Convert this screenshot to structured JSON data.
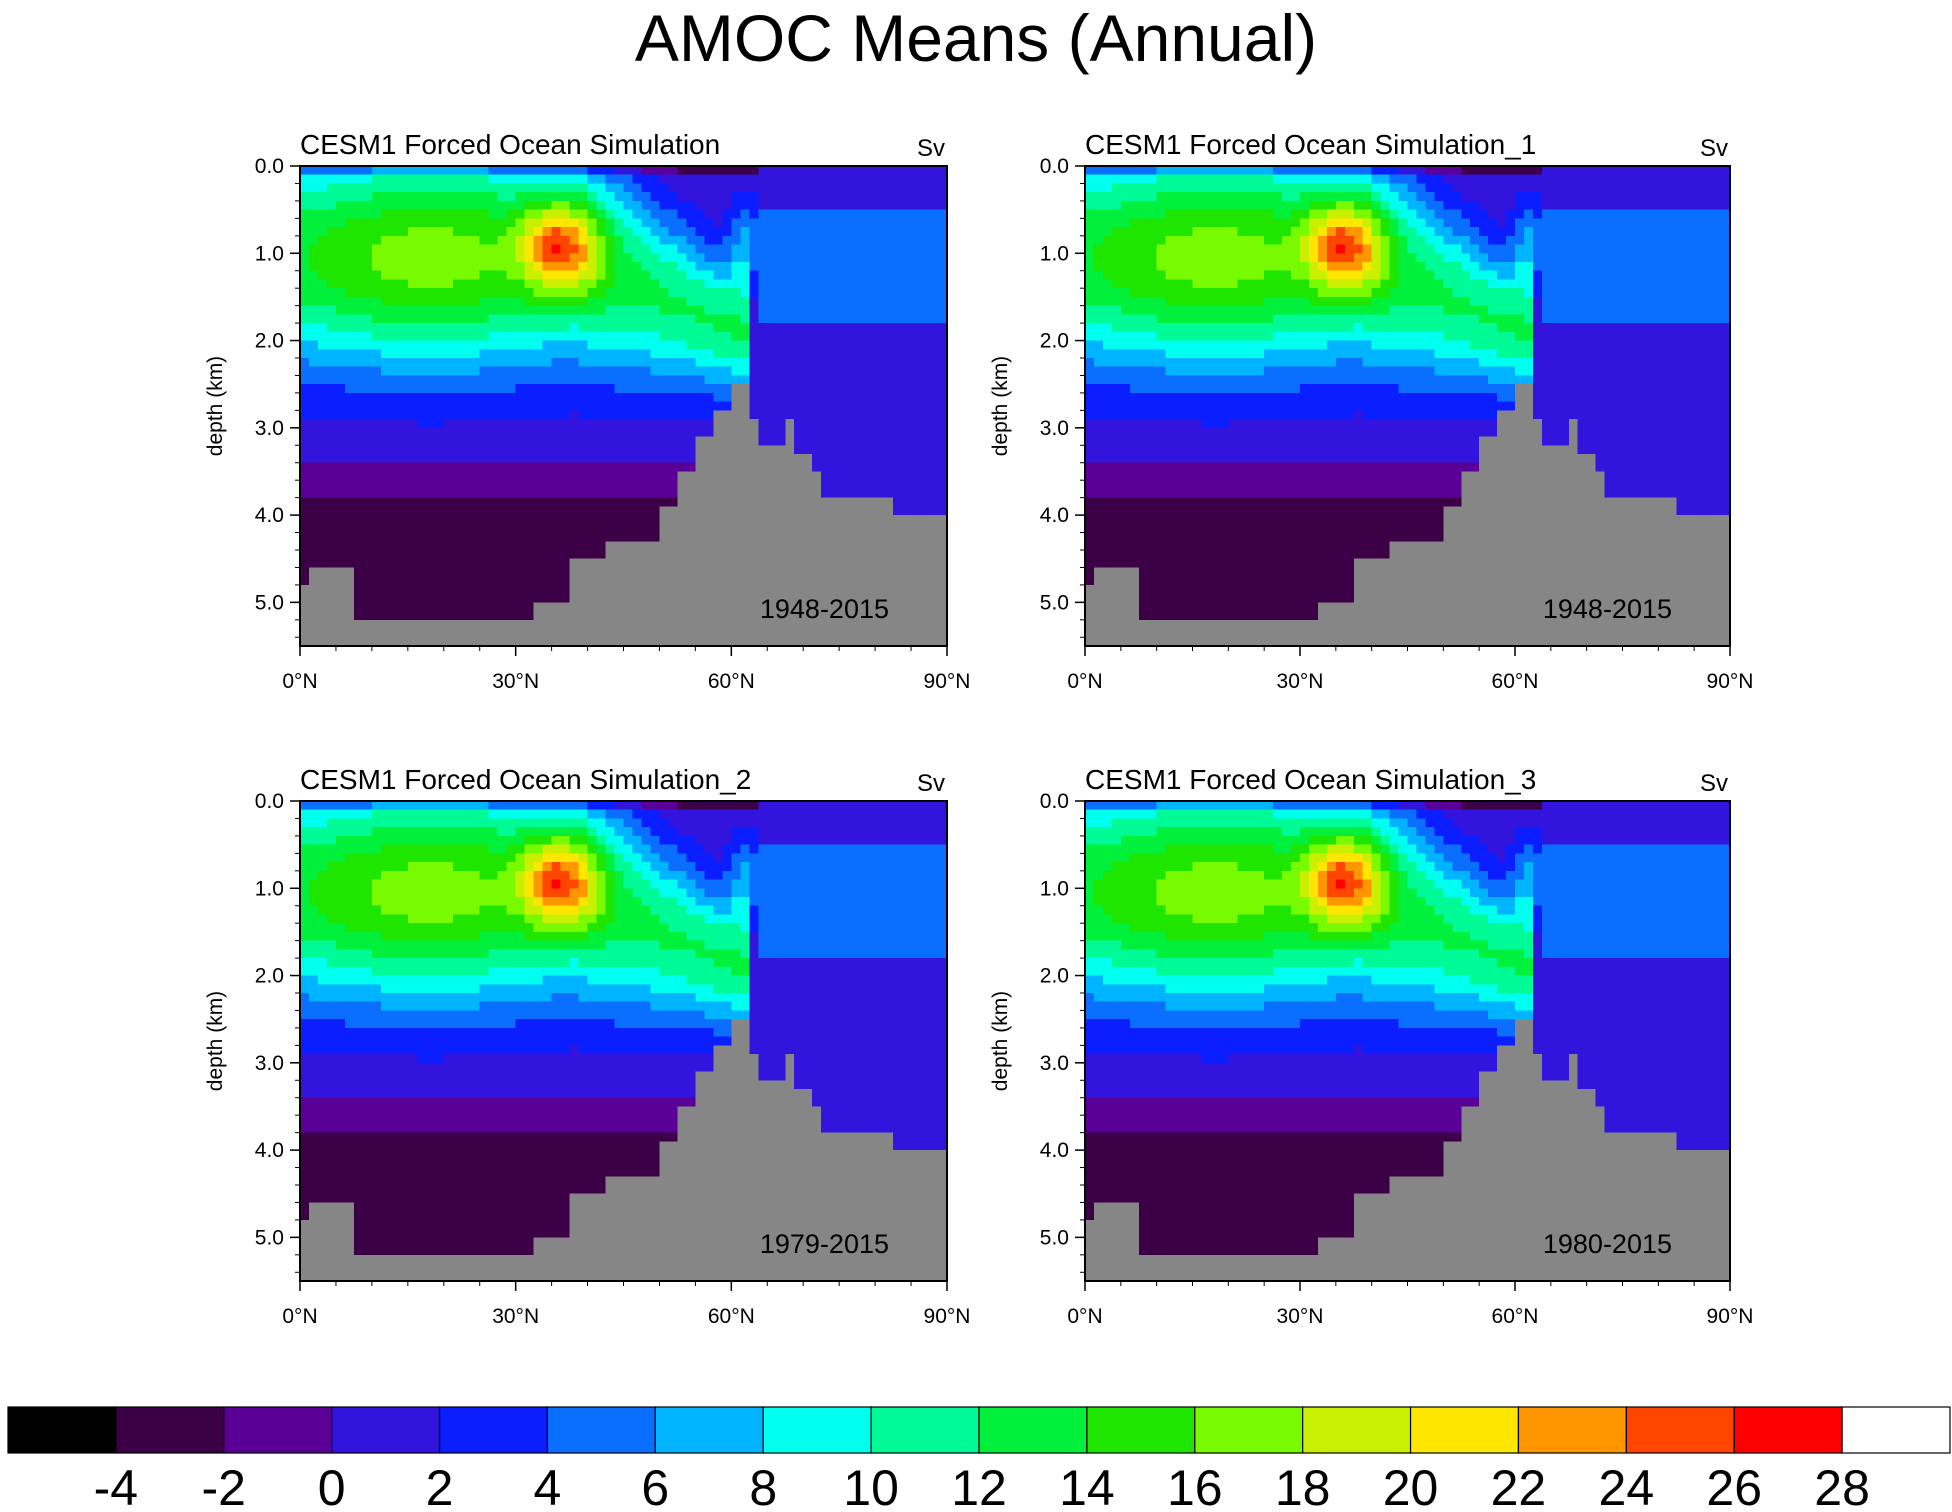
{
  "title": "AMOC Means (Annual)",
  "chart_data": {
    "type": "contour-filled",
    "variable": "AMOC (Atlantic meridional overturning streamfunction)",
    "units": "Sv",
    "xlabel": "",
    "ylabel": "depth (km)",
    "xlim": [
      0,
      90
    ],
    "ylim": [
      5.5,
      0.0
    ],
    "x_ticks": [
      "0°N",
      "30°N",
      "60°N",
      "90°N"
    ],
    "y_ticks": [
      "0.0",
      "1.0",
      "2.0",
      "3.0",
      "4.0",
      "5.0"
    ],
    "panels": [
      {
        "title": "CESM1 Forced Ocean Simulation",
        "units": "Sv",
        "period": "1948-2015",
        "max_value": 26,
        "max_lat": 35.5,
        "max_depth_km": 0.9
      },
      {
        "title": "CESM1 Forced Ocean Simulation_1",
        "units": "Sv",
        "period": "1948-2015",
        "max_value": 26,
        "max_lat": 35.5,
        "max_depth_km": 0.9
      },
      {
        "title": "CESM1 Forced Ocean Simulation_2",
        "units": "Sv",
        "period": "1979-2015",
        "max_value": 26,
        "max_lat": 35.5,
        "max_depth_km": 0.9
      },
      {
        "title": "CESM1 Forced Ocean Simulation_3",
        "units": "Sv",
        "period": "1980-2015",
        "max_value": 26,
        "max_lat": 35.5,
        "max_depth_km": 0.9
      }
    ],
    "colorbar": {
      "levels": [
        "-4",
        "-2",
        "0",
        "2",
        "4",
        "6",
        "8",
        "10",
        "12",
        "14",
        "16",
        "18",
        "20",
        "22",
        "24",
        "26",
        "28"
      ],
      "colors": [
        "#000000",
        "#3c0046",
        "#5a0096",
        "#3214dc",
        "#0a1eff",
        "#0a6eff",
        "#00b4ff",
        "#00ffee",
        "#00fa96",
        "#00f03c",
        "#1ee600",
        "#78fa00",
        "#c8f000",
        "#ffe600",
        "#ff9600",
        "#ff4600",
        "#ff0000",
        "#ffffff"
      ]
    },
    "land_color": "#868686"
  }
}
